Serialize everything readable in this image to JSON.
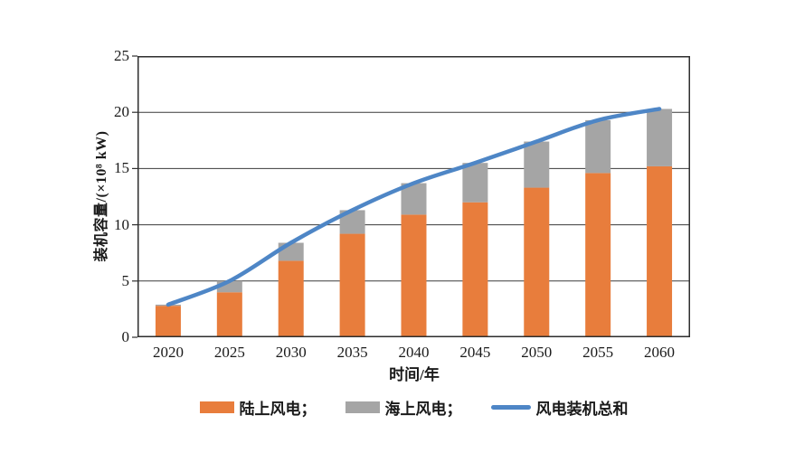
{
  "chart_data": {
    "type": "bar",
    "stacked": true,
    "categories": [
      "2020",
      "2025",
      "2030",
      "2035",
      "2040",
      "2045",
      "2050",
      "2055",
      "2060"
    ],
    "series": [
      {
        "name": "陆上风电",
        "legend_label": "陆上风电；",
        "kind": "bar",
        "color": "#E87D3C",
        "values": [
          2.8,
          4.0,
          6.8,
          9.2,
          10.9,
          12.0,
          13.3,
          14.6,
          15.2
        ]
      },
      {
        "name": "海上风电",
        "legend_label": "海上风电；",
        "kind": "bar",
        "color": "#A5A5A5",
        "values": [
          0.1,
          1.0,
          1.6,
          2.1,
          2.8,
          3.5,
          4.1,
          4.7,
          5.1
        ]
      },
      {
        "name": "风电装机总和",
        "legend_label": "风电装机总和",
        "kind": "line",
        "color": "#4E86C6",
        "values": [
          2.9,
          5.0,
          8.4,
          11.3,
          13.7,
          15.5,
          17.4,
          19.3,
          20.3
        ]
      }
    ],
    "title": "",
    "xlabel": "时间/年",
    "ylabel": "装机容量/(×10⁸ kW)",
    "ylim": [
      0,
      25
    ],
    "y_ticks": [
      0,
      5,
      10,
      15,
      20,
      25
    ],
    "grid": true,
    "legend_position": "bottom"
  },
  "colors": {
    "axis_border": "#2e2e2e",
    "gridline": "#3a3a3a",
    "text": "#1a1a1a",
    "background": "#ffffff"
  }
}
